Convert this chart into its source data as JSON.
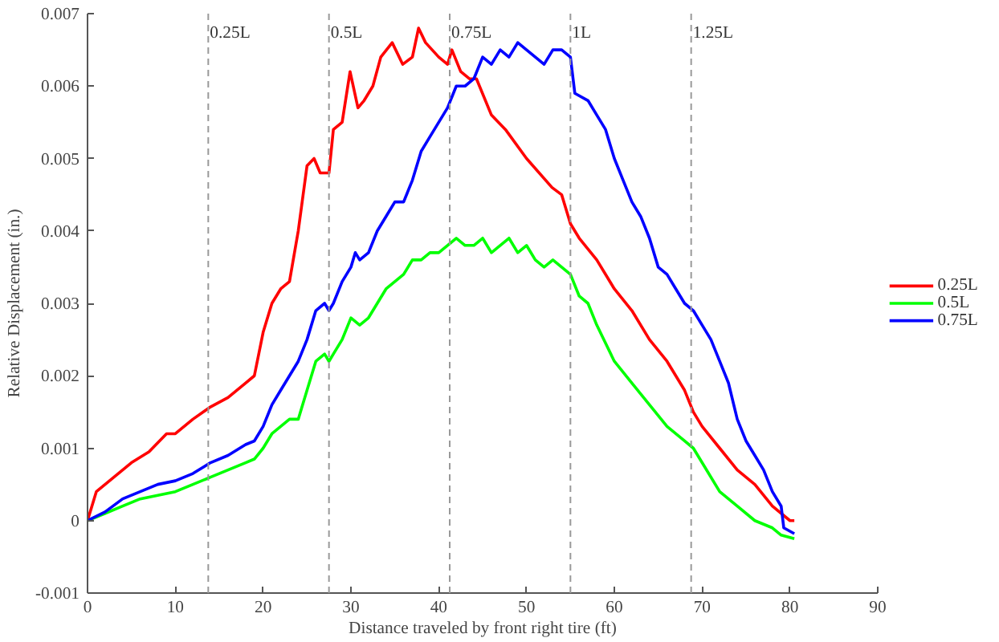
{
  "chart_data": {
    "type": "line",
    "xlabel": "Distance traveled by front right tire (ft)",
    "ylabel": "Relative Displacement (in.)",
    "xlim": [
      0,
      90
    ],
    "xticks": [
      0,
      10,
      20,
      30,
      40,
      50,
      60,
      70,
      80,
      90
    ],
    "ylim": [
      -0.001,
      0.007
    ],
    "yticks": [
      -0.001,
      0,
      0.001,
      0.002,
      0.003,
      0.004,
      0.005,
      0.006,
      0.007
    ],
    "grid": false,
    "legend": "right",
    "line_style": "solid",
    "marker": "none",
    "ref_lines": [
      {
        "axis": "x",
        "value": 13.75,
        "label": "0.25L",
        "color": "#999999",
        "line_style": "dashed"
      },
      {
        "axis": "x",
        "value": 27.5,
        "label": "0.5L",
        "color": "#999999",
        "line_style": "dashed"
      },
      {
        "axis": "x",
        "value": 41.25,
        "label": "0.75L",
        "color": "#999999",
        "line_style": "dashed"
      },
      {
        "axis": "x",
        "value": 55,
        "label": "1L",
        "color": "#999999",
        "line_style": "dashed"
      },
      {
        "axis": "x",
        "value": 68.75,
        "label": "1.25L",
        "color": "#999999",
        "line_style": "dashed"
      }
    ],
    "series": [
      {
        "name": "0.25L",
        "color": "#ff0000",
        "x": [
          0,
          1,
          2,
          3,
          5,
          7,
          9,
          10,
          12,
          14,
          16,
          18,
          19,
          20,
          21,
          22,
          23,
          24,
          25,
          25.8,
          26.5,
          27.5,
          28,
          29,
          29.9,
          30.8,
          31.5,
          32.5,
          33.4,
          34.7,
          35.9,
          37,
          37.7,
          38.5,
          40,
          41,
          41.5,
          42.5,
          43.5,
          44.3,
          46,
          47.6,
          50,
          52.9,
          54,
          55,
          56,
          58,
          60,
          62,
          64,
          66,
          68,
          69,
          70,
          72,
          74,
          76,
          78,
          80,
          80.5
        ],
        "values": [
          0,
          0.0004,
          0.0005,
          0.0006,
          0.0008,
          0.00095,
          0.0012,
          0.0012,
          0.0014,
          0.00157,
          0.0017,
          0.0019,
          0.002,
          0.0026,
          0.003,
          0.0032,
          0.0033,
          0.004,
          0.0049,
          0.005,
          0.0048,
          0.0048,
          0.0054,
          0.0055,
          0.0062,
          0.0057,
          0.0058,
          0.006,
          0.0064,
          0.0066,
          0.0063,
          0.0064,
          0.0068,
          0.0066,
          0.0064,
          0.0063,
          0.0065,
          0.0062,
          0.0061,
          0.0061,
          0.0056,
          0.0054,
          0.005,
          0.0046,
          0.0045,
          0.0041,
          0.0039,
          0.0036,
          0.0032,
          0.0029,
          0.0025,
          0.0022,
          0.0018,
          0.0015,
          0.0013,
          0.001,
          0.0007,
          0.0005,
          0.0002,
          0.0,
          0
        ]
      },
      {
        "name": "0.5L",
        "color": "#00ff00",
        "x": [
          0,
          2,
          4,
          6,
          8,
          10,
          12,
          14,
          16,
          18,
          19,
          20,
          21,
          22,
          23,
          24,
          25,
          26,
          27,
          27.5,
          28,
          29,
          30,
          31,
          32,
          33,
          34,
          35,
          36,
          37,
          38,
          39,
          40,
          41,
          42,
          43,
          44,
          45,
          46,
          47,
          48,
          49,
          50,
          51,
          52,
          53,
          54,
          55,
          56,
          57,
          58,
          60,
          62,
          64,
          66,
          68,
          69,
          70,
          72,
          74,
          76,
          78,
          79,
          80.5
        ],
        "values": [
          0,
          0.0001,
          0.0002,
          0.0003,
          0.00035,
          0.0004,
          0.0005,
          0.0006,
          0.0007,
          0.0008,
          0.00085,
          0.001,
          0.0012,
          0.0013,
          0.0014,
          0.0014,
          0.0018,
          0.0022,
          0.0023,
          0.0022,
          0.0023,
          0.0025,
          0.0028,
          0.0027,
          0.0028,
          0.003,
          0.0032,
          0.0033,
          0.0034,
          0.0036,
          0.0036,
          0.0037,
          0.0037,
          0.0038,
          0.0039,
          0.0038,
          0.0038,
          0.0039,
          0.0037,
          0.0038,
          0.0039,
          0.0037,
          0.0038,
          0.0036,
          0.0035,
          0.0036,
          0.0035,
          0.0034,
          0.0031,
          0.003,
          0.0027,
          0.0022,
          0.0019,
          0.0016,
          0.0013,
          0.0011,
          0.001,
          0.0008,
          0.0004,
          0.0002,
          0.0,
          -0.0001,
          -0.0002,
          -0.00025
        ]
      },
      {
        "name": "0.75L",
        "color": "#0000ff",
        "x": [
          0,
          2,
          4,
          6,
          8,
          10,
          12,
          14,
          16,
          18,
          19,
          20,
          21,
          22,
          23,
          24,
          25,
          26,
          27,
          27.5,
          28,
          29,
          30,
          30.5,
          31,
          32,
          33,
          34,
          35,
          36,
          37,
          38,
          39,
          40,
          41,
          42,
          43,
          44,
          45,
          46,
          47,
          48,
          49,
          50,
          51,
          52,
          53,
          54,
          55,
          55.5,
          57,
          58,
          59,
          60,
          61,
          62,
          63,
          64,
          65,
          66,
          67,
          68,
          69,
          70,
          71,
          72,
          73,
          74,
          75,
          76,
          77,
          78,
          79,
          79.3,
          80.5
        ],
        "values": [
          0,
          0.00012,
          0.0003,
          0.0004,
          0.0005,
          0.00055,
          0.00065,
          0.0008,
          0.0009,
          0.00105,
          0.0011,
          0.0013,
          0.0016,
          0.0018,
          0.002,
          0.0022,
          0.0025,
          0.0029,
          0.003,
          0.0029,
          0.003,
          0.0033,
          0.0035,
          0.0037,
          0.0036,
          0.0037,
          0.004,
          0.0042,
          0.0044,
          0.0044,
          0.0047,
          0.0051,
          0.0053,
          0.0055,
          0.0057,
          0.006,
          0.006,
          0.0061,
          0.0064,
          0.0063,
          0.0065,
          0.0064,
          0.0066,
          0.0065,
          0.0064,
          0.0063,
          0.0065,
          0.0065,
          0.0064,
          0.0059,
          0.0058,
          0.0056,
          0.0054,
          0.005,
          0.0047,
          0.0044,
          0.0042,
          0.0039,
          0.0035,
          0.0034,
          0.0032,
          0.003,
          0.0029,
          0.0027,
          0.0025,
          0.0022,
          0.0019,
          0.0014,
          0.0011,
          0.0009,
          0.0007,
          0.0004,
          0.0002,
          -0.0001,
          -0.00018
        ]
      }
    ]
  }
}
